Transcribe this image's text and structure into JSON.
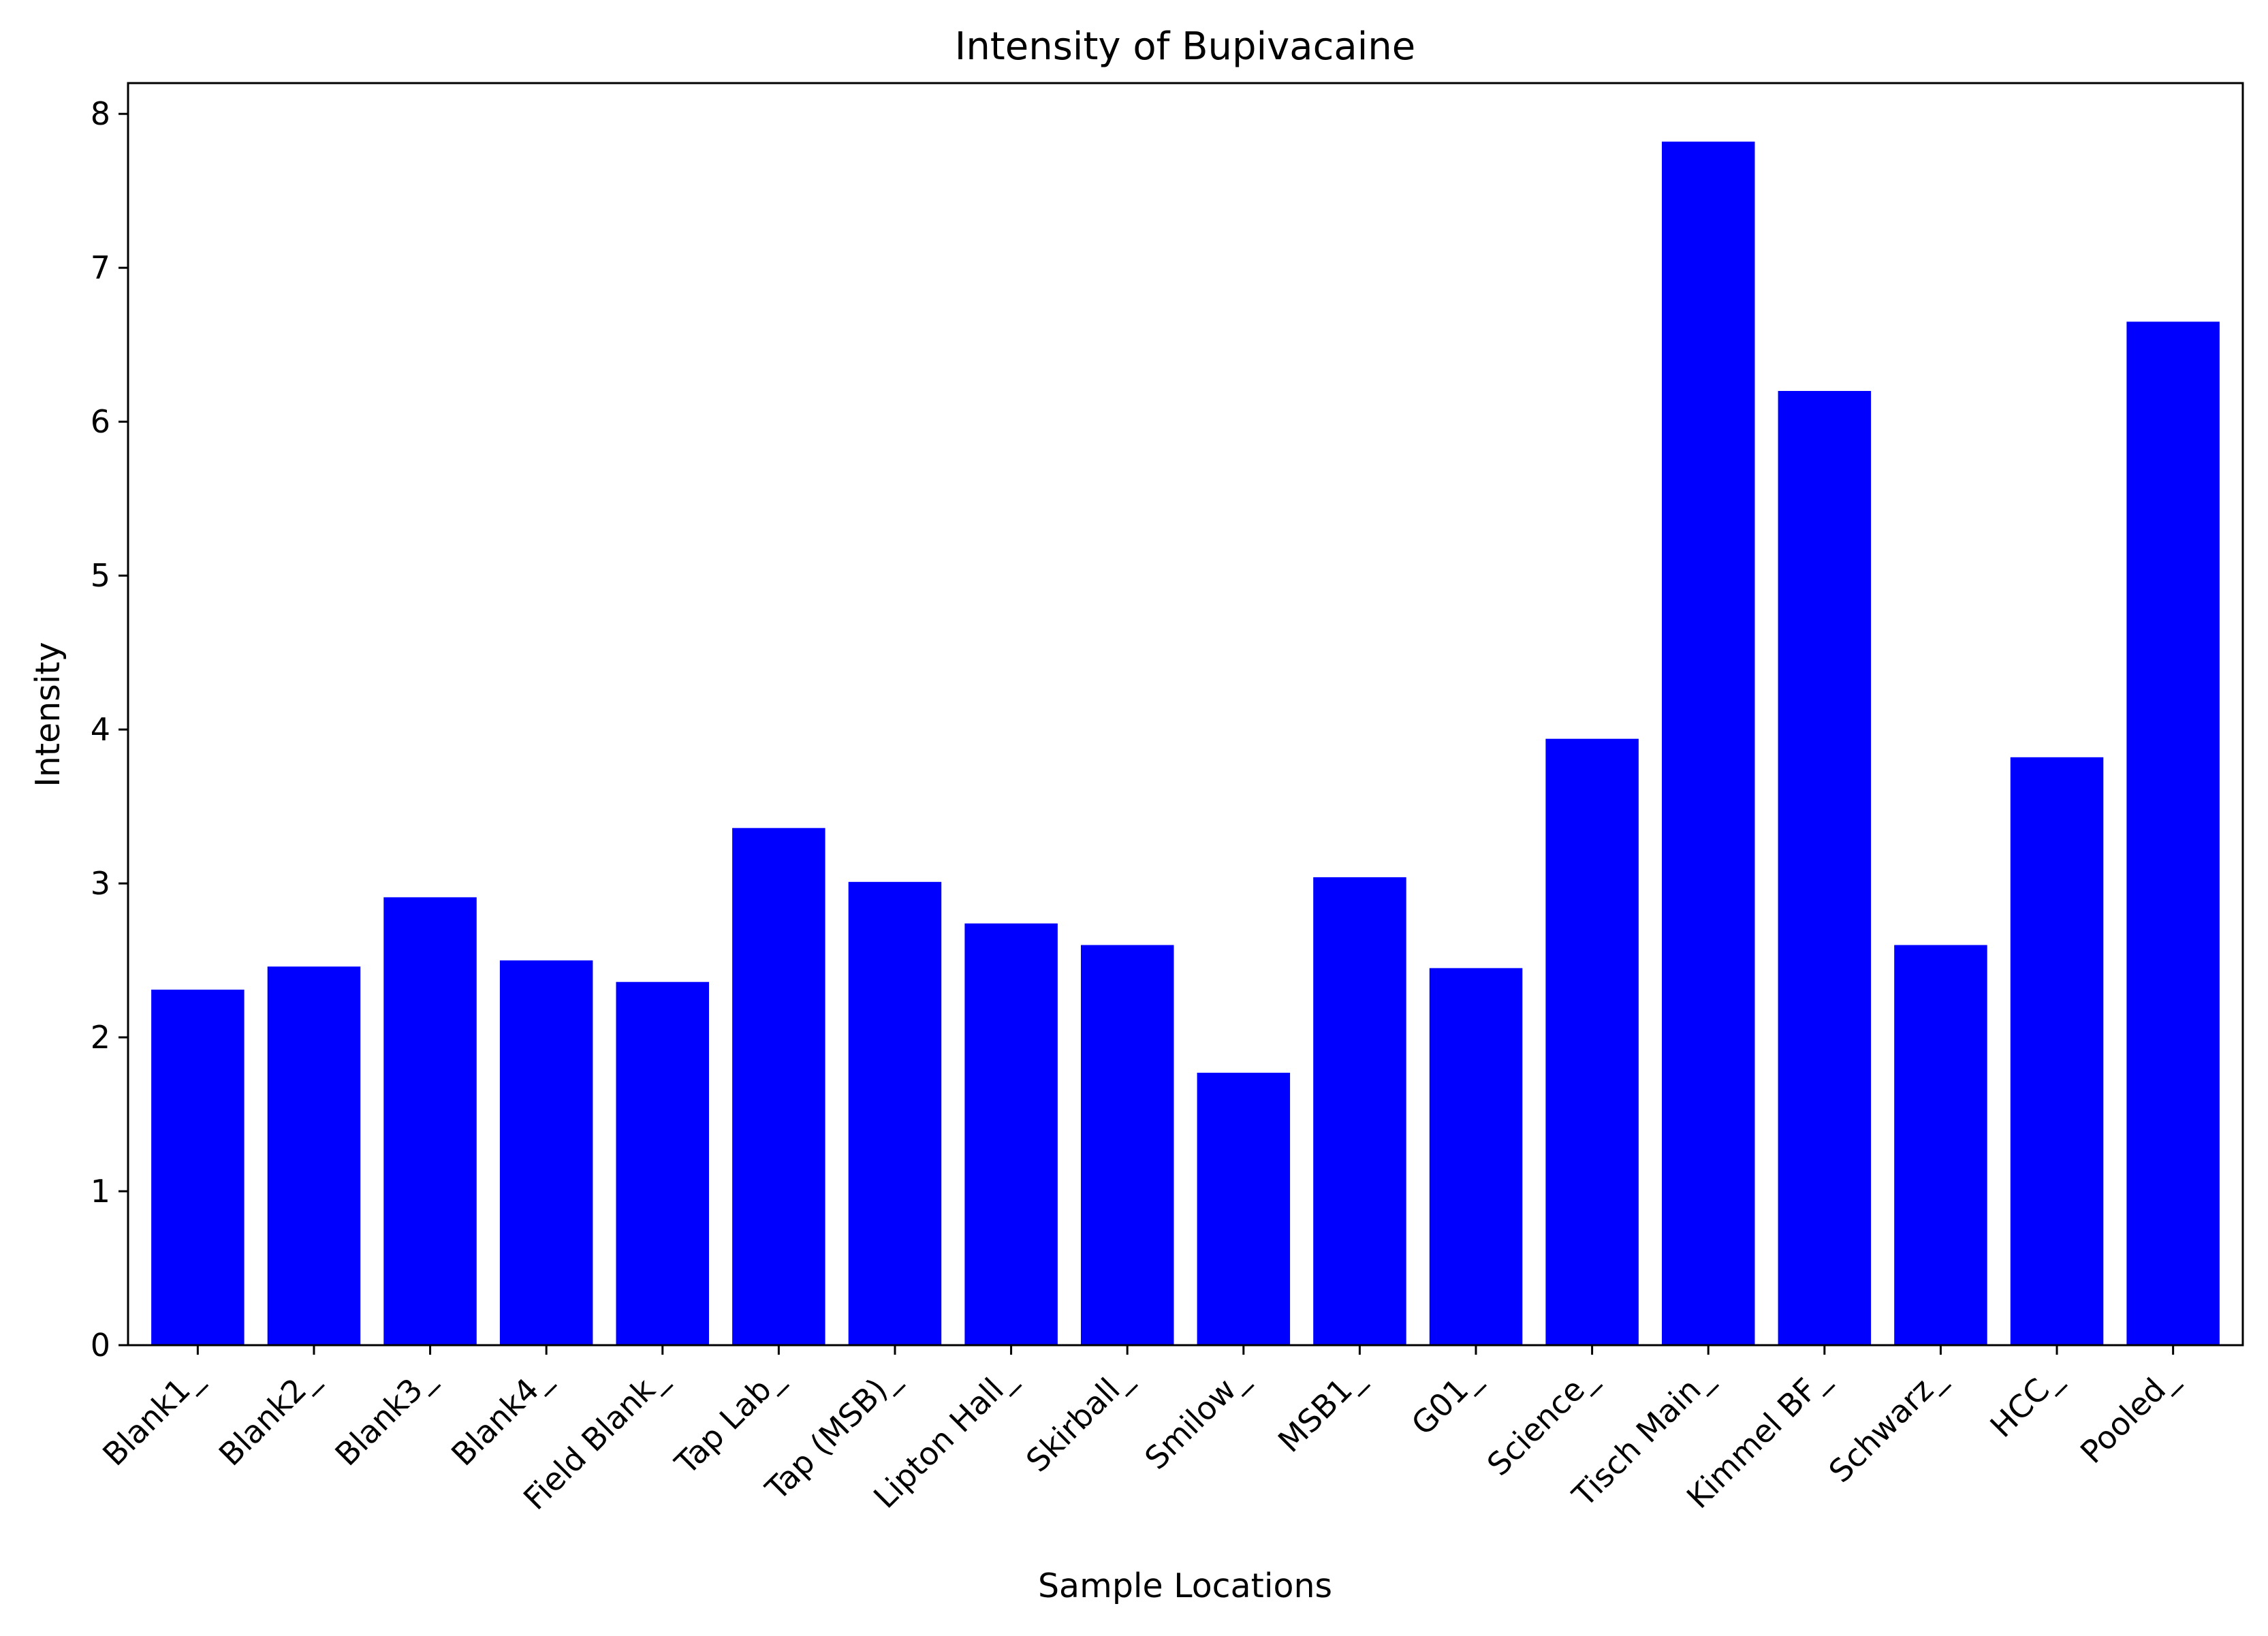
{
  "chart_data": {
    "type": "bar",
    "title": "Intensity of Bupivacaine",
    "xlabel": "Sample Locations",
    "ylabel": "Intensity",
    "categories": [
      "Blank1_",
      "Blank2_",
      "Blank3_",
      "Blank4_",
      "Field Blank_",
      "Tap Lab_",
      "Tap (MSB)_",
      "Lipton Hall_",
      "Skirball_",
      "Smilow_",
      "MSB1_",
      "G01_",
      "Science_",
      "Tisch Main_",
      "Kimmel BF_",
      "Schwarz_",
      "HCC_",
      "Pooled_"
    ],
    "values": [
      2.31,
      2.46,
      2.91,
      2.5,
      2.36,
      3.36,
      3.01,
      2.74,
      2.6,
      1.77,
      3.04,
      2.45,
      3.94,
      7.82,
      6.2,
      2.6,
      3.82,
      6.65
    ],
    "ylim": [
      0,
      8.2
    ],
    "yticks": [
      0,
      1,
      2,
      3,
      4,
      5,
      6,
      7,
      8
    ],
    "bar_color": "#0000ff",
    "grid": false
  }
}
